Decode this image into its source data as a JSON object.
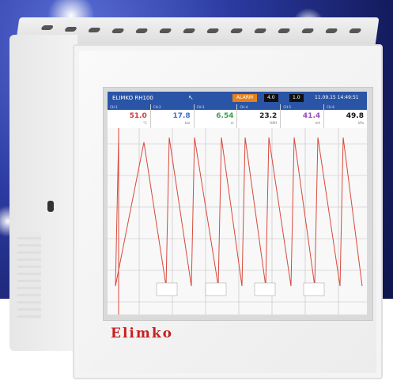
{
  "screen": {
    "title": "ELIMKO RH100",
    "status": "ALARM",
    "button_1": "4.0",
    "button_2": "1.0",
    "datetime": "11.09.15 14:49:51"
  },
  "channels": [
    {
      "name": "CH-1",
      "value": "51.0",
      "unit": "°C",
      "color": "#d43a3a"
    },
    {
      "name": "CH-2",
      "value": "17.8",
      "unit": "bar",
      "color": "#3b6fd4"
    },
    {
      "name": "CH-3",
      "value": "6.54",
      "unit": "m",
      "color": "#3aa34a"
    },
    {
      "name": "CH-4",
      "value": "23.2",
      "unit": "%RH",
      "color": "#222222"
    },
    {
      "name": "CH-5",
      "value": "41.4",
      "unit": "mA",
      "color": "#9a4fc0"
    },
    {
      "name": "CH-6",
      "value": "49.8",
      "unit": "kPa",
      "color": "#111111"
    }
  ],
  "brand": "Elimko",
  "colors": {
    "trend": "#d9483b",
    "grid": "#bfbfbf",
    "titlebar": "#2a54a6",
    "brand": "#c81e1e"
  }
}
